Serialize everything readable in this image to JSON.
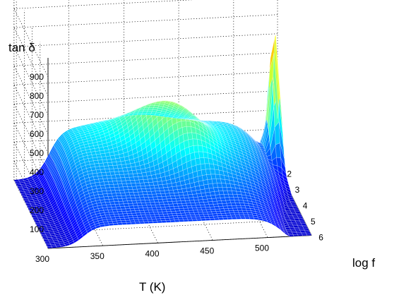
{
  "chart_data": {
    "type": "surface",
    "zlabel": "tan  δ",
    "xlabel": "T (K)",
    "ylabel": "log f",
    "x_ticks": [
      "300",
      "350",
      "400",
      "450",
      "500"
    ],
    "y_ticks": [
      "2",
      "3",
      "4",
      "5",
      "6"
    ],
    "z_ticks": [
      "100",
      "200",
      "300",
      "400",
      "500",
      "600",
      "700",
      "800",
      "900"
    ],
    "xlim": [
      300,
      540
    ],
    "ylim": [
      1.7,
      6
    ],
    "zlim": [
      0,
      1000
    ],
    "grid": "dotted",
    "colormap": "jet",
    "ridges": [
      {
        "description": "broad hump",
        "peak_T": 435,
        "peak_logf": 3.0,
        "peak_tan_delta": 430
      },
      {
        "description": "sharp peak",
        "peak_T": 535,
        "peak_logf": 2.0,
        "peak_tan_delta": 930
      }
    ],
    "baseline_tan_delta": 270
  }
}
